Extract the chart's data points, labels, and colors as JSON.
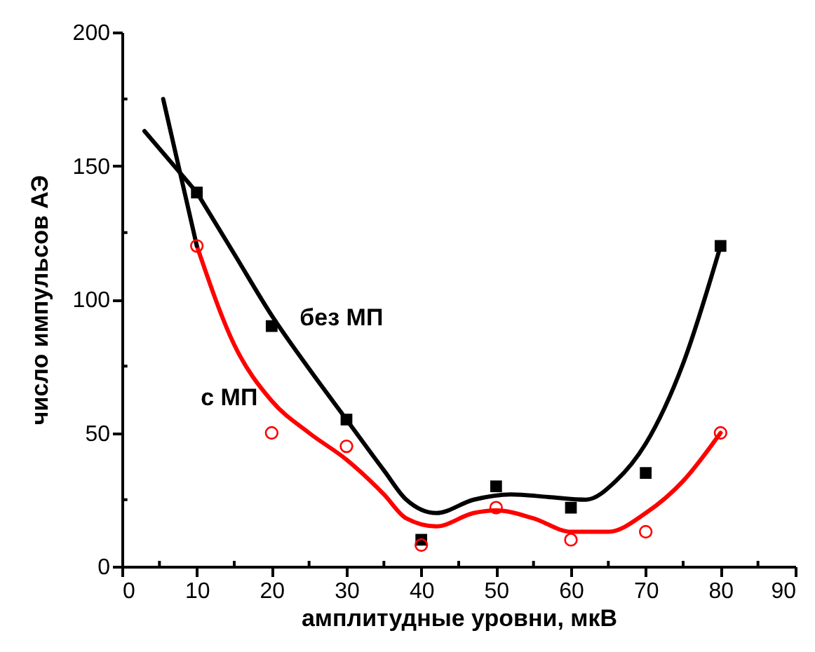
{
  "chart_data": {
    "type": "scatter",
    "xlabel": "амплитудные уровни, мкВ",
    "ylabel": "число импульсов АЭ",
    "xlim": [
      0,
      90
    ],
    "xticks": [
      0,
      10,
      20,
      30,
      40,
      50,
      60,
      70,
      80,
      90
    ],
    "ylim": [
      0,
      200
    ],
    "yticks": [
      0,
      50,
      100,
      150,
      200
    ],
    "grid": false,
    "legend": false,
    "series": [
      {
        "type": "line",
        "name": "без МП",
        "color": "#000000",
        "marker": "none",
        "x": [
          10,
          15,
          20,
          25,
          30,
          35,
          38,
          42,
          47,
          52,
          57,
          62,
          66,
          70,
          75,
          80
        ],
        "values": [
          140,
          117,
          94,
          74,
          55,
          36,
          25,
          20,
          25,
          27,
          26,
          25,
          32,
          46,
          76,
          120
        ]
      },
      {
        "type": "line",
        "name": "с МП",
        "color": "#ff0000",
        "marker": "none",
        "x": [
          10,
          15,
          20,
          25,
          30,
          35,
          38,
          42,
          47,
          50,
          55,
          60,
          65,
          70,
          75,
          80
        ],
        "values": [
          120,
          83,
          62,
          50,
          40,
          27,
          18,
          15,
          20,
          21,
          18,
          13,
          13,
          20,
          32,
          50
        ]
      },
      {
        "type": "line",
        "color": "#000000",
        "marker": "none",
        "x": [
          10,
          5.5
        ],
        "values": [
          120,
          175
        ]
      },
      {
        "type": "line",
        "color": "#000000",
        "marker": "none",
        "x": [
          10,
          3
        ],
        "values": [
          140,
          163
        ]
      },
      {
        "type": "scatter",
        "color": "#000000",
        "marker": "square",
        "x": [
          10,
          20,
          30,
          40,
          50,
          60,
          70,
          80
        ],
        "values": [
          140,
          90,
          55,
          10,
          30,
          22,
          35,
          120
        ]
      },
      {
        "type": "scatter",
        "color": "#ff0000",
        "marker": "circle",
        "x": [
          10,
          20,
          30,
          40,
          50,
          60,
          70,
          80
        ],
        "values": [
          120,
          50,
          45,
          8,
          22,
          10,
          13,
          50
        ]
      }
    ]
  }
}
